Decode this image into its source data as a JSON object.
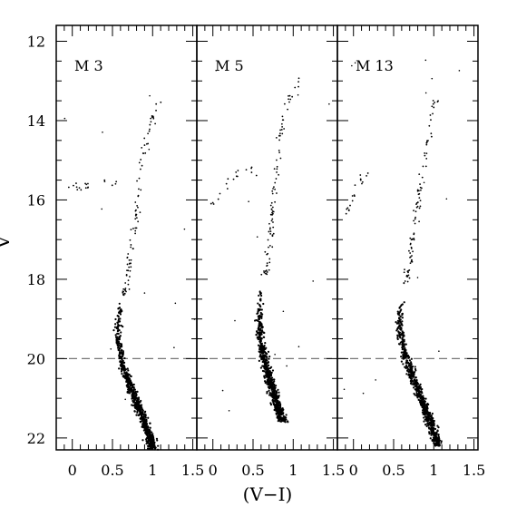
{
  "chart_data": {
    "type": "scatter",
    "ylabel": "V",
    "xlabel": "(V−I)",
    "y_inverted": true,
    "ylim": [
      22.3,
      11.6
    ],
    "y_ticks": [
      "12",
      "14",
      "16",
      "18",
      "20",
      "22"
    ],
    "x_ticks": [
      "0",
      "0.5",
      "1",
      "1.5"
    ],
    "reference_line": {
      "y": 20,
      "style": "dashed"
    },
    "point_color": "#000000",
    "panels": [
      {
        "label": "M 3",
        "xlim": [
          -0.2,
          1.55
        ],
        "x_tick_values": [
          0,
          0.5,
          1,
          1.5
        ],
        "sequence": [
          {
            "color": 0.6,
            "V": 18.6
          },
          {
            "color": 0.57,
            "V": 19.0
          },
          {
            "color": 0.57,
            "V": 19.5
          },
          {
            "color": 0.61,
            "V": 20.0
          },
          {
            "color": 0.68,
            "V": 20.5
          },
          {
            "color": 0.78,
            "V": 21.0
          },
          {
            "color": 0.88,
            "V": 21.5
          },
          {
            "color": 0.97,
            "V": 22.0
          },
          {
            "color": 1.0,
            "V": 22.3
          }
        ],
        "giant_branch": [
          {
            "color": 0.64,
            "V": 18.4
          },
          {
            "color": 0.69,
            "V": 17.9
          },
          {
            "color": 0.72,
            "V": 17.4
          },
          {
            "color": 0.79,
            "V": 16.5
          },
          {
            "color": 0.84,
            "V": 15.5
          },
          {
            "color": 0.92,
            "V": 14.5
          },
          {
            "color": 1.02,
            "V": 13.8
          },
          {
            "color": 1.1,
            "V": 13.5
          }
        ],
        "horizontal_branch": [
          {
            "color": -0.1,
            "V": 15.8
          },
          {
            "color": 0.05,
            "V": 15.7
          },
          {
            "color": 0.2,
            "V": 15.6
          },
          {
            "color": 0.4,
            "V": 15.6
          },
          {
            "color": 0.55,
            "V": 15.6
          }
        ]
      },
      {
        "label": "M 5",
        "xlim": [
          -0.2,
          1.55
        ],
        "x_tick_values": [
          0,
          0.5,
          1,
          1.5
        ],
        "sequence": [
          {
            "color": 0.6,
            "V": 18.3
          },
          {
            "color": 0.58,
            "V": 19.0
          },
          {
            "color": 0.59,
            "V": 19.5
          },
          {
            "color": 0.64,
            "V": 20.0
          },
          {
            "color": 0.7,
            "V": 20.5
          },
          {
            "color": 0.78,
            "V": 21.0
          },
          {
            "color": 0.85,
            "V": 21.5
          },
          {
            "color": 0.9,
            "V": 21.6
          }
        ],
        "giant_branch": [
          {
            "color": 0.65,
            "V": 17.9
          },
          {
            "color": 0.71,
            "V": 17.0
          },
          {
            "color": 0.75,
            "V": 16.2
          },
          {
            "color": 0.8,
            "V": 15.0
          },
          {
            "color": 0.88,
            "V": 14.0
          },
          {
            "color": 0.97,
            "V": 13.4
          },
          {
            "color": 1.1,
            "V": 12.9
          }
        ],
        "horizontal_branch": [
          {
            "color": -0.05,
            "V": 16.2
          },
          {
            "color": 0.1,
            "V": 15.8
          },
          {
            "color": 0.3,
            "V": 15.3
          },
          {
            "color": 0.45,
            "V": 15.2
          },
          {
            "color": 0.55,
            "V": 15.3
          }
        ]
      },
      {
        "label": "M 13",
        "xlim": [
          -0.2,
          1.55
        ],
        "x_tick_values": [
          0,
          0.5,
          1,
          1.5
        ],
        "sequence": [
          {
            "color": 0.6,
            "V": 18.5
          },
          {
            "color": 0.57,
            "V": 19.0
          },
          {
            "color": 0.59,
            "V": 19.5
          },
          {
            "color": 0.66,
            "V": 20.0
          },
          {
            "color": 0.75,
            "V": 20.5
          },
          {
            "color": 0.84,
            "V": 21.0
          },
          {
            "color": 0.94,
            "V": 21.5
          },
          {
            "color": 1.02,
            "V": 22.0
          },
          {
            "color": 1.05,
            "V": 22.2
          }
        ],
        "giant_branch": [
          {
            "color": 0.64,
            "V": 18.1
          },
          {
            "color": 0.72,
            "V": 17.3
          },
          {
            "color": 0.78,
            "V": 16.5
          },
          {
            "color": 0.85,
            "V": 15.5
          },
          {
            "color": 0.92,
            "V": 14.5
          },
          {
            "color": 1.0,
            "V": 13.6
          },
          {
            "color": 1.05,
            "V": 13.4
          }
        ],
        "horizontal_branch": [
          {
            "color": -0.1,
            "V": 16.5
          },
          {
            "color": 0.0,
            "V": 15.9
          },
          {
            "color": 0.1,
            "V": 15.5
          },
          {
            "color": 0.2,
            "V": 15.2
          }
        ]
      }
    ]
  }
}
